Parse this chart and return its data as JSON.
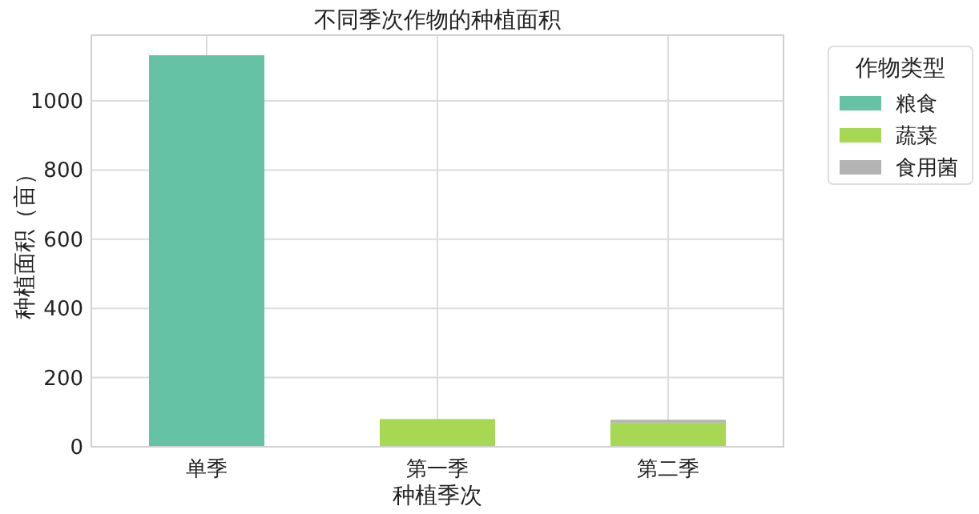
{
  "chart_data": {
    "type": "bar",
    "title": "不同季次作物的种植面积",
    "xlabel": "种植季次",
    "ylabel": "种植面积（亩）",
    "legend_title": "作物类型",
    "categories": [
      "单季",
      "第一季",
      "第二季"
    ],
    "stacked": true,
    "series": [
      {
        "name": "粮食",
        "color": "#66c2a5",
        "values": [
          1132,
          0,
          0
        ]
      },
      {
        "name": "蔬菜",
        "color": "#a6d854",
        "values": [
          0,
          80,
          70
        ]
      },
      {
        "name": "食用菌",
        "color": "#b3b3b3",
        "values": [
          0,
          0,
          8
        ]
      }
    ],
    "ylim": [
      0,
      1190
    ],
    "yticks": [
      0,
      200,
      400,
      600,
      800,
      1000
    ],
    "grid": true,
    "legend": "top right"
  }
}
